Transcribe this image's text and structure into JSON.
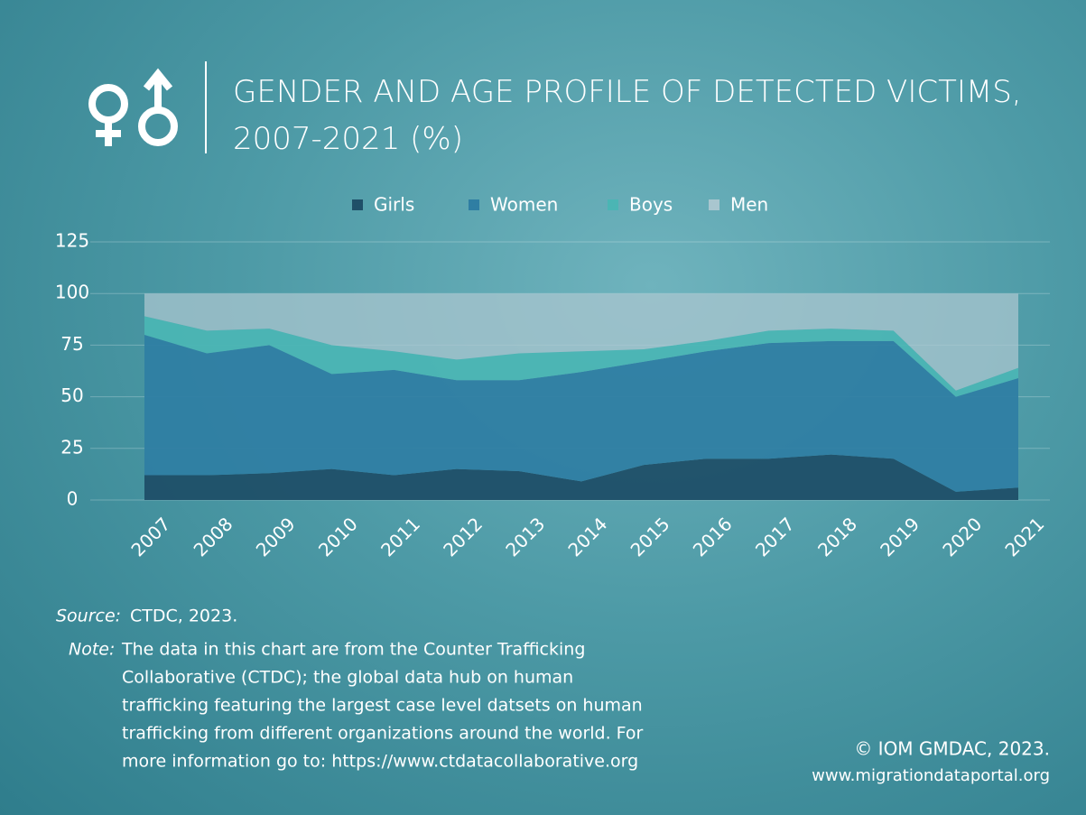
{
  "chart_data": {
    "type": "stacked_area",
    "title": "GENDER AND AGE PROFILE OF DETECTED VICTIMS, 2007-2021 (%)",
    "categories": [
      "2007",
      "2008",
      "2009",
      "2010",
      "2011",
      "2012",
      "2013",
      "2014",
      "2015",
      "2016",
      "2017",
      "2018",
      "2019",
      "2020",
      "2021"
    ],
    "series": [
      {
        "name": "Girls",
        "color": "#1f4f68",
        "values": [
          12,
          12,
          13,
          15,
          12,
          15,
          14,
          9,
          17,
          20,
          20,
          22,
          20,
          4,
          6
        ]
      },
      {
        "name": "Women",
        "color": "#2f7ea3",
        "values": [
          68,
          59,
          62,
          46,
          51,
          43,
          44,
          53,
          50,
          52,
          56,
          55,
          57,
          46,
          53
        ]
      },
      {
        "name": "Boys",
        "color": "#4bb5b4",
        "values": [
          9,
          11,
          8,
          14,
          9,
          10,
          13,
          10,
          6,
          5,
          6,
          6,
          5,
          3,
          5
        ]
      },
      {
        "name": "Men",
        "color": "#a9c6cf",
        "values": [
          11,
          18,
          17,
          25,
          28,
          32,
          29,
          28,
          27,
          23,
          18,
          17,
          18,
          47,
          36
        ]
      }
    ],
    "ylim": [
      0,
      125
    ],
    "yticks": [
      0,
      25,
      50,
      75,
      100,
      125
    ],
    "grid": true,
    "legend": "top",
    "source_label": "Source:",
    "source": "CTDC, 2023.",
    "note_label": "Note:",
    "note_lines": [
      "The data in this chart are from the Counter Trafficking",
      "Collaborative (CTDC); the global data hub on human",
      "trafficking featuring the largest case level datsets on human",
      "trafficking from different organizations around the world. For",
      "more information go to: https://www.ctdatacollaborative.org"
    ],
    "credit": "© IOM GMDAC, 2023.",
    "credit_url": "www.migrationdataportal.org"
  }
}
